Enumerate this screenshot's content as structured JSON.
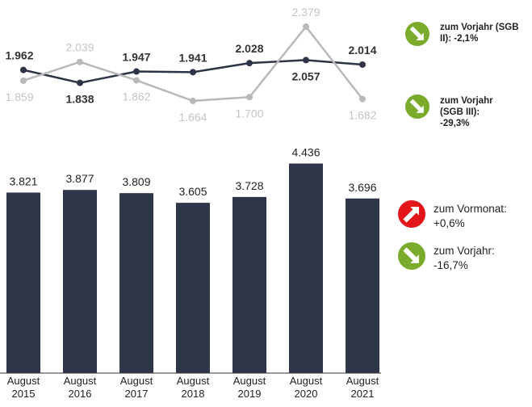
{
  "chart_data": [
    {
      "type": "line",
      "ylim": [
        1500,
        2500
      ],
      "series": [
        {
          "color": "#2e3447",
          "label_color": "#333333",
          "values": [
            1962,
            1838,
            1947,
            1941,
            2028,
            2057,
            2014
          ],
          "value_labels": [
            "1.962",
            "1.838",
            "1.947",
            "1.941",
            "2.028",
            "2.057",
            "2.014"
          ]
        },
        {
          "color": "#b9b9b9",
          "label_color": "#c4c4c4",
          "values": [
            1859,
            2039,
            1862,
            1664,
            1700,
            2379,
            1682
          ],
          "value_labels": [
            "1.859",
            "2.039",
            "1.862",
            "1.664",
            "1.700",
            "2.379",
            "1.682"
          ]
        }
      ]
    },
    {
      "type": "bar",
      "color": "#2f3649",
      "ylim": [
        0,
        5000
      ],
      "categories": [
        "August 2015",
        "August 2016",
        "August 2017",
        "August 2018",
        "August 2019",
        "August 2020",
        "August 2021"
      ],
      "values": [
        3821,
        3877,
        3809,
        3605,
        3728,
        4436,
        3696
      ],
      "value_labels": [
        "3.821",
        "3.877",
        "3.809",
        "3.605",
        "3.728",
        "4.436",
        "3.696"
      ]
    }
  ],
  "indicators": [
    {
      "label": "zum Vorjahr (SGB II):",
      "value": "-2,1%",
      "direction": "down",
      "color": "#7aab2a"
    },
    {
      "label": "zum Vorjahr (SGB III):",
      "value": "-29,3%",
      "direction": "down",
      "color": "#7aab2a"
    },
    {
      "label": "zum Vormonat:",
      "value": "+0,6%",
      "direction": "up",
      "color": "#e3151a"
    },
    {
      "label": "zum Vorjahr:",
      "value": "-16,7%",
      "direction": "down",
      "color": "#7aab2a"
    }
  ]
}
